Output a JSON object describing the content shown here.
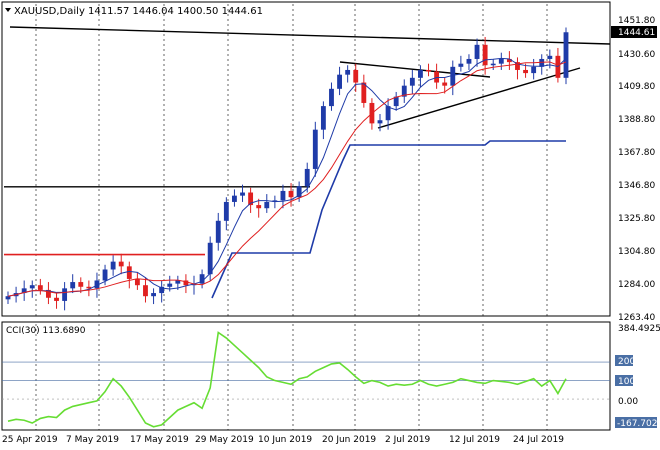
{
  "chart_title": {
    "symbol": "XAUUSD,Daily",
    "ohlc": "1411.57 1446.04 1400.50 1444.61"
  },
  "current_price_label": "1444.61",
  "price_axis": {
    "ticks": [
      "1451.80",
      "1430.60",
      "1409.80",
      "1388.80",
      "1367.80",
      "1346.80",
      "1325.80",
      "1304.80",
      "1284.00",
      "1263.40"
    ]
  },
  "cci_panel": {
    "title": "CCI(30) 113.6890",
    "ticks": [
      "384.4925",
      "200",
      "100",
      "0.00",
      "-167.702"
    ],
    "level_colors": {
      "200": "#4a6fa5",
      "100": "#4a6fa5"
    }
  },
  "time_axis": {
    "labels": [
      "25 Apr 2019",
      "7 May 2019",
      "17 May 2019",
      "29 May 2019",
      "10 Jun 2019",
      "20 Jun 2019",
      "2 Jul 2019",
      "12 Jul 2019",
      "24 Jul 2019"
    ]
  },
  "colors": {
    "bull_candle": "#1f3ba8",
    "bear_candle": "#e02020",
    "ma_fast": "#1f3ba8",
    "ma_slow": "#e02020",
    "support_line": "#1f3ba8",
    "cci_line": "#66dd33",
    "horizontal_red": "#e02020",
    "horizontal_black": "#000000"
  },
  "chart_data": {
    "type": "candlestick",
    "x": [
      "25 Apr 2019",
      "7 May 2019",
      "17 May 2019",
      "29 May 2019",
      "10 Jun 2019",
      "20 Jun 2019",
      "2 Jul 2019",
      "12 Jul 2019",
      "24 Jul 2019"
    ],
    "ylim": [
      1263.4,
      1451.8
    ],
    "close_series_approx": [
      1276,
      1278,
      1281,
      1283,
      1280,
      1275,
      1273,
      1281,
      1285,
      1282,
      1281,
      1286,
      1293,
      1298,
      1295,
      1287,
      1283,
      1276,
      1278,
      1282,
      1284,
      1286,
      1283,
      1284,
      1290,
      1310,
      1324,
      1336,
      1340,
      1342,
      1334,
      1332,
      1336,
      1337,
      1343,
      1339,
      1346,
      1357,
      1382,
      1397,
      1408,
      1417,
      1420,
      1412,
      1399,
      1386,
      1388,
      1397,
      1403,
      1410,
      1415,
      1420,
      1419,
      1412,
      1410,
      1422,
      1424,
      1427,
      1436,
      1423,
      1424,
      1427,
      1425,
      1420,
      1418,
      1422,
      1427,
      1429,
      1415,
      1444
    ],
    "cci_ylim": [
      -167.702,
      384.4925
    ],
    "cci_levels": [
      200,
      100,
      0
    ]
  }
}
